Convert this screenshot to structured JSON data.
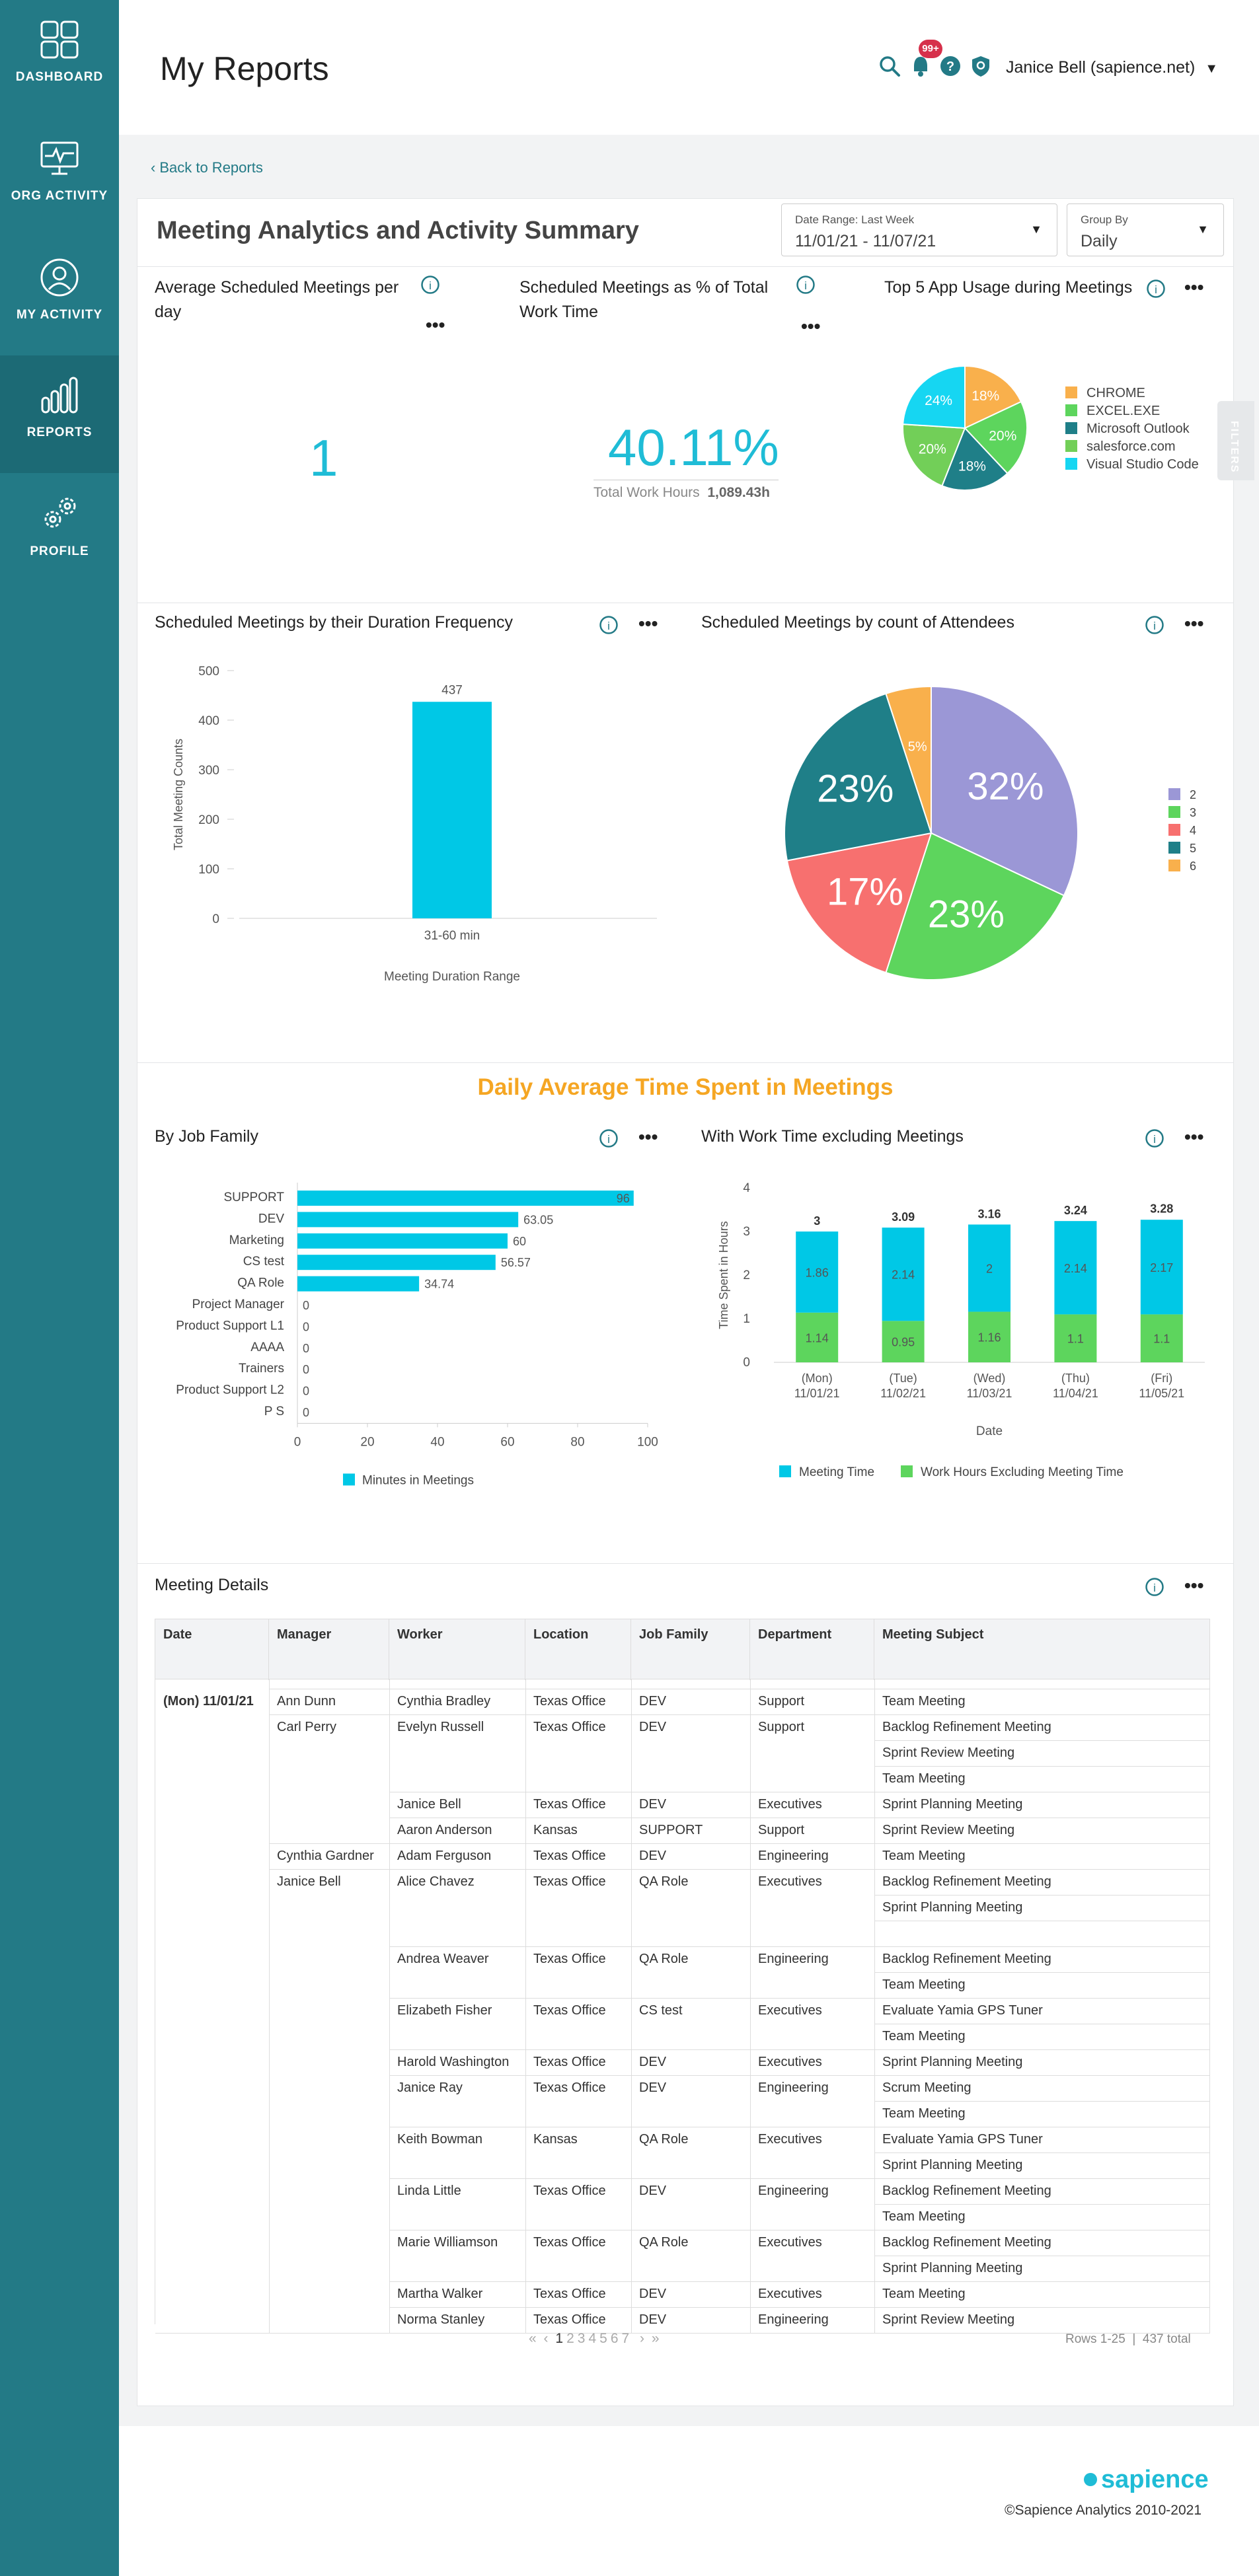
{
  "sidebar": {
    "items": [
      {
        "label": "DASHBOARD",
        "icon": "dashboard-icon"
      },
      {
        "label": "ORG ACTIVITY",
        "icon": "monitor-icon"
      },
      {
        "label": "MY ACTIVITY",
        "icon": "user-icon"
      },
      {
        "label": "REPORTS",
        "icon": "bar-chart-icon",
        "active": true
      },
      {
        "label": "PROFILE",
        "icon": "gears-icon"
      }
    ]
  },
  "header": {
    "title": "My Reports",
    "notif_badge": "99+",
    "user": "Janice Bell (sapience.net)",
    "caret": "▼"
  },
  "back_link": "Back to Reports",
  "report": {
    "title": "Meeting Analytics and Activity Summary",
    "date_range": {
      "label": "Date Range: Last Week",
      "value": "11/01/21 - 11/07/21",
      "caret": "▼"
    },
    "group_by": {
      "label": "Group By",
      "value": "Daily",
      "caret": "▼"
    }
  },
  "filters_tab": "FILTERS",
  "cards": {
    "avg_meetings": {
      "title": "Average Scheduled Meetings per day",
      "value": "1"
    },
    "pct_meetings": {
      "title": "Scheduled Meetings as % of Total Work Time",
      "value": "40.11%",
      "sub_label": "Total Work Hours",
      "sub_value": "1,089.43h"
    },
    "top_apps": {
      "title": "Top 5 App Usage during Meetings"
    },
    "duration": {
      "title": "Scheduled Meetings by their Duration Frequency"
    },
    "attendees": {
      "title": "Scheduled Meetings by count of Attendees"
    },
    "job_family": {
      "title": "By Job Family"
    },
    "work_time": {
      "title": "With Work Time excluding Meetings"
    },
    "details": {
      "title": "Meeting Details"
    }
  },
  "daily_heading": "Daily Average Time Spent in Meetings",
  "colors": {
    "teal": "#237a86",
    "cyan": "#00c8e6",
    "green": "#5dd55d",
    "orange": "#f5a623",
    "dark_teal": "#1f7f88",
    "purple": "#9b97d6",
    "salmon": "#f7706f",
    "accent_blue": "#1fbcd6"
  },
  "chart_data": [
    {
      "id": "top_apps",
      "type": "pie",
      "categories": [
        "CHROME",
        "EXCEL.EXE",
        "Microsoft Outlook",
        "salesforce.com",
        "Visual Studio Code"
      ],
      "values": [
        18,
        20,
        18,
        20,
        24
      ],
      "labels": [
        "18%",
        "20%",
        "18%",
        "20%",
        "24%"
      ],
      "colors": [
        "#f9b04c",
        "#5dd55d",
        "#1f7f88",
        "#72cf58",
        "#16d6f2"
      ],
      "legend": "right"
    },
    {
      "id": "duration",
      "type": "bar",
      "categories": [
        "31-60 min"
      ],
      "values": [
        437
      ],
      "xlabel": "Meeting Duration Range",
      "ylabel": "Total Meeting Counts",
      "ylim": [
        0,
        500
      ],
      "yticks": [
        "500",
        "400",
        "300",
        "200",
        "100",
        "0"
      ],
      "value_labels": [
        "437"
      ]
    },
    {
      "id": "attendees",
      "type": "pie",
      "categories": [
        "2",
        "3",
        "4",
        "5",
        "6"
      ],
      "values": [
        32,
        23,
        17,
        23,
        5
      ],
      "labels": [
        "32%",
        "23%",
        "17%",
        "23%",
        "5%"
      ],
      "colors": [
        "#9b97d6",
        "#5dd55d",
        "#f7706f",
        "#1f7f88",
        "#f9b04c"
      ],
      "legend": "right"
    },
    {
      "id": "job_family",
      "type": "bar",
      "orientation": "horizontal",
      "categories": [
        "SUPPORT",
        "DEV",
        "Marketing",
        "CS test",
        "QA Role",
        "Project Manager",
        "Product Support L1",
        "AAAA",
        "Trainers",
        "Product Support L2",
        "P S"
      ],
      "values": [
        96,
        63.05,
        60,
        56.57,
        34.74,
        0,
        0,
        0,
        0,
        0,
        0
      ],
      "value_labels": [
        "96",
        "63.05",
        "60",
        "56.57",
        "34.74",
        "0",
        "0",
        "0",
        "0",
        "0",
        "0"
      ],
      "xlim": [
        0,
        100
      ],
      "xticks": [
        "0",
        "20",
        "40",
        "60",
        "80",
        "100"
      ],
      "series_name": "Minutes in Meetings",
      "legend": "bottom"
    },
    {
      "id": "work_time",
      "type": "bar",
      "stacked": true,
      "categories": [
        "(Mon) 11/01/21",
        "(Tue) 11/02/21",
        "(Wed) 11/03/21",
        "(Thu) 11/04/21",
        "(Fri) 11/05/21"
      ],
      "category_lines": [
        [
          "(Mon)",
          "11/01/21"
        ],
        [
          "(Tue)",
          "11/02/21"
        ],
        [
          "(Wed)",
          "11/03/21"
        ],
        [
          "(Thu)",
          "11/04/21"
        ],
        [
          "(Fri)",
          "11/05/21"
        ]
      ],
      "series": [
        {
          "name": "Work Hours Excluding Meeting Time",
          "values": [
            1.14,
            0.95,
            1.16,
            1.1,
            1.1
          ],
          "labels": [
            "1.14",
            "0.95",
            "1.16",
            "1.1",
            "1.1"
          ]
        },
        {
          "name": "Meeting Time",
          "values": [
            1.86,
            2.14,
            2,
            2.14,
            2.17
          ],
          "labels": [
            "1.86",
            "2.14",
            "2",
            "2.14",
            "2.17"
          ]
        }
      ],
      "totals": [
        "3",
        "3.09",
        "3.16",
        "3.24",
        "3.28"
      ],
      "total_values": [
        3,
        3.09,
        3.16,
        3.24,
        3.28
      ],
      "xlabel": "Date",
      "ylabel": "Time Spent in Hours",
      "ylim": [
        0,
        4
      ],
      "yticks": [
        "4",
        "3",
        "2",
        "1",
        "0"
      ],
      "legend": "bottom",
      "legend_order": [
        "Meeting Time",
        "Work Hours Excluding Meeting Time"
      ]
    }
  ],
  "table": {
    "columns": [
      "Date",
      "Manager",
      "Worker",
      "Location",
      "Job Family",
      "Department",
      "Meeting Subject"
    ],
    "date_value": "(Mon) 11/01/21",
    "managers": [
      {
        "name": "Ann Dunn",
        "row": 0
      },
      {
        "name": "Carl Perry",
        "row": 1
      },
      {
        "name": "Cynthia Gardner",
        "row": 4
      },
      {
        "name": "Janice Bell",
        "row": 5
      }
    ],
    "workers": [
      {
        "worker": "Cynthia Bradley",
        "location": "Texas Office",
        "job": "DEV",
        "dept": "Support",
        "subjects": [
          "Team Meeting"
        ]
      },
      {
        "worker": "Evelyn Russell",
        "location": "Texas Office",
        "job": "DEV",
        "dept": "Support",
        "subjects": [
          "Backlog Refinement Meeting",
          "Sprint Review Meeting",
          "Team Meeting"
        ]
      },
      {
        "worker": "Janice Bell",
        "location": "Texas Office",
        "job": "DEV",
        "dept": "Executives",
        "subjects": [
          "Sprint Planning Meeting"
        ]
      },
      {
        "worker": "Aaron Anderson",
        "location": "Kansas",
        "job": "SUPPORT",
        "dept": "Support",
        "subjects": [
          "Sprint Review Meeting"
        ]
      },
      {
        "worker": "Adam Ferguson",
        "location": "Texas Office",
        "job": "DEV",
        "dept": "Engineering",
        "subjects": [
          "Team Meeting"
        ]
      },
      {
        "worker": "Alice Chavez",
        "location": "Texas Office",
        "job": "QA Role",
        "dept": "Executives",
        "subjects": [
          "Backlog Refinement Meeting",
          "Sprint Planning Meeting",
          ""
        ]
      },
      {
        "worker": "Andrea Weaver",
        "location": "Texas Office",
        "job": "QA Role",
        "dept": "Engineering",
        "subjects": [
          "Backlog Refinement Meeting",
          "Team Meeting"
        ]
      },
      {
        "worker": "Elizabeth Fisher",
        "location": "Texas Office",
        "job": "CS test",
        "dept": "Executives",
        "subjects": [
          "Evaluate Yamia GPS Tuner",
          "Team Meeting"
        ]
      },
      {
        "worker": "Harold Washington",
        "location": "Texas Office",
        "job": "DEV",
        "dept": "Executives",
        "subjects": [
          "Sprint Planning Meeting"
        ]
      },
      {
        "worker": "Janice Ray",
        "location": "Texas Office",
        "job": "DEV",
        "dept": "Engineering",
        "subjects": [
          "Scrum Meeting",
          "Team Meeting"
        ]
      },
      {
        "worker": "Keith Bowman",
        "location": "Kansas",
        "job": "QA Role",
        "dept": "Executives",
        "subjects": [
          "Evaluate Yamia GPS Tuner",
          "Sprint Planning Meeting"
        ]
      },
      {
        "worker": "Linda Little",
        "location": "Texas Office",
        "job": "DEV",
        "dept": "Engineering",
        "subjects": [
          "Backlog Refinement Meeting",
          "Team Meeting"
        ]
      },
      {
        "worker": "Marie Williamson",
        "location": "Texas Office",
        "job": "QA Role",
        "dept": "Executives",
        "subjects": [
          "Backlog Refinement Meeting",
          "Sprint Planning Meeting"
        ]
      },
      {
        "worker": "Martha Walker",
        "location": "Texas Office",
        "job": "DEV",
        "dept": "Executives",
        "subjects": [
          "Team Meeting"
        ]
      },
      {
        "worker": "Norma Stanley",
        "location": "Texas Office",
        "job": "DEV",
        "dept": "Engineering",
        "subjects": [
          "Sprint Review Meeting"
        ]
      }
    ]
  },
  "pagination": {
    "first": "«",
    "prev": "‹",
    "pages": [
      "1",
      "2",
      "3",
      "4",
      "5",
      "6",
      "7"
    ],
    "current": "1",
    "next": "›",
    "last": "»",
    "rows_info": "Rows 1-25",
    "total_info": "437 total"
  },
  "footer": {
    "brand": "sapience",
    "copyright": "©Sapience Analytics 2010-2021"
  }
}
